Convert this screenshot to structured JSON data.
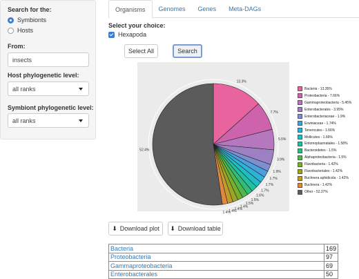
{
  "sidebar": {
    "search_for_label": "Search for the:",
    "options": [
      {
        "label": "Symbionts",
        "selected": true
      },
      {
        "label": "Hosts",
        "selected": false
      }
    ],
    "from_label": "From:",
    "from_value": "insects",
    "host_level_label": "Host phylogenetic level:",
    "host_level_value": "all ranks",
    "symbiont_level_label": "Symbiont phylogenetic level:",
    "symbiont_level_value": "all ranks"
  },
  "tabs": [
    {
      "label": "Organisms",
      "active": true
    },
    {
      "label": "Genomes",
      "active": false
    },
    {
      "label": "Genes",
      "active": false
    },
    {
      "label": "Meta-DAGs",
      "active": false
    }
  ],
  "choice": {
    "title": "Select your choice:",
    "checkbox_label": "Hexapoda",
    "checked": true
  },
  "buttons": {
    "select_all": "Select All",
    "search": "Search",
    "download_plot": "Download plot",
    "download_table": "Download table"
  },
  "chart_data": {
    "type": "pie",
    "slices": [
      {
        "name": "Bacteria - 13.35%",
        "value": 13.35,
        "label": "13.3%",
        "color": "#e7649e"
      },
      {
        "name": "Proteobacteria - 7.66%",
        "value": 7.66,
        "label": "7.7%",
        "color": "#cc63ac"
      },
      {
        "name": "Gammaproteobacteria - 5.45%",
        "value": 5.45,
        "label": "5.5%",
        "color": "#b577bd"
      },
      {
        "name": "Enterobacterales - 3.95%",
        "value": 3.95,
        "label": "3.9%",
        "color": "#9d7fc4"
      },
      {
        "name": "Enterobacteriaceae - 1.9%",
        "value": 1.9,
        "label": "1.9%",
        "color": "#7d8fd1"
      },
      {
        "name": "Erwiniaceae - 1.74%",
        "value": 1.74,
        "label": "1.7%",
        "color": "#4aa0dd"
      },
      {
        "name": "Tenericutes - 1.66%",
        "value": 1.66,
        "label": "1.7%",
        "color": "#2fb2d8"
      },
      {
        "name": "Mollicutes - 1.66%",
        "value": 1.66,
        "label": "1.7%",
        "color": "#22bcc2"
      },
      {
        "name": "Entomoplasmatales - 1.58%",
        "value": 1.58,
        "label": "1.6%",
        "color": "#22c09f"
      },
      {
        "name": "Bacteroidetes - 1.5%",
        "value": 1.5,
        "label": "1.5%",
        "color": "#2fbd7a"
      },
      {
        "name": "Alphaproteobacteria - 1.5%",
        "value": 1.5,
        "label": "1.5%",
        "color": "#4fb84c"
      },
      {
        "name": "Flavobacteria - 1.42%",
        "value": 1.42,
        "label": "1.4%",
        "color": "#76ae2e"
      },
      {
        "name": "Flavobacteriales - 1.42%",
        "value": 1.42,
        "label": "1.4%",
        "color": "#9ca425"
      },
      {
        "name": "Buchnera aphidicola - 1.42%",
        "value": 1.42,
        "label": "1.4%",
        "color": "#c19c2c"
      },
      {
        "name": "Buchnera - 1.42%",
        "value": 1.42,
        "label": "1.4%",
        "color": "#e0893e"
      },
      {
        "name": "Other - 52.37%",
        "value": 52.37,
        "label": "52.4%",
        "color": "#5b5b5b"
      }
    ],
    "legend_position": "right"
  },
  "table": {
    "rows": [
      {
        "name": "Bacteria",
        "count": "169"
      },
      {
        "name": "Proteobacteria",
        "count": "97"
      },
      {
        "name": "Gammaproteobacteria",
        "count": "69"
      },
      {
        "name": "Enterobacterales",
        "count": "50"
      }
    ]
  }
}
